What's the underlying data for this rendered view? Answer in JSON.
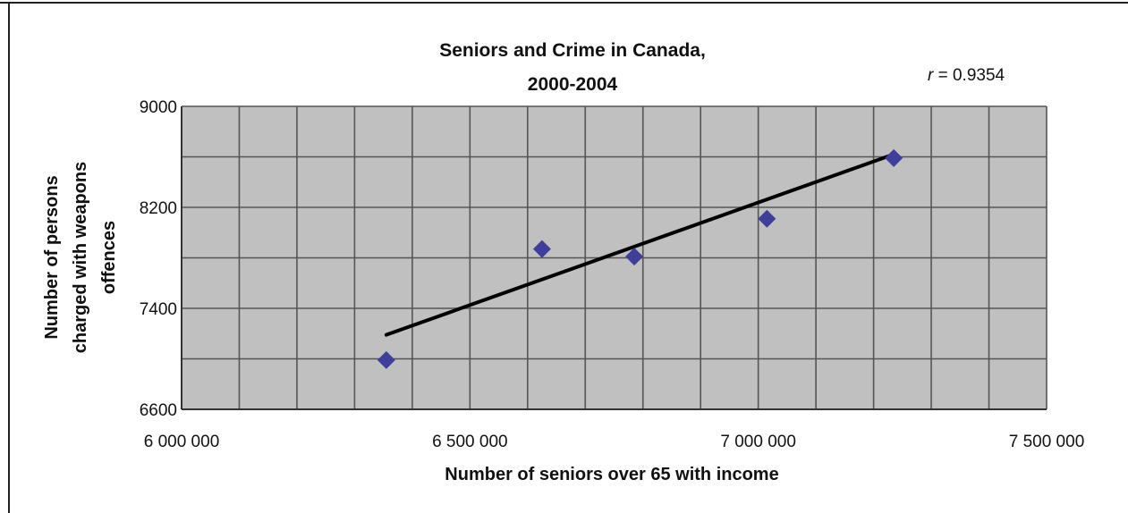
{
  "chart_data": {
    "type": "scatter",
    "title_lines": [
      "Seniors and Crime in Canada,",
      "2000-2004"
    ],
    "annotation": {
      "var": "r",
      "text": " = 0.9354"
    },
    "xlabel": "Number of seniors over 65 with income",
    "ylabel_lines": [
      "Number of persons",
      "charged with weapons",
      "offences"
    ],
    "xlim": [
      6000000,
      7500000
    ],
    "ylim": [
      6600,
      9000
    ],
    "x_ticks": [
      6000000,
      6500000,
      7000000,
      7500000
    ],
    "x_tick_labels": [
      "6 000 000",
      "6 500 000",
      "7 000 000",
      "7 500 000"
    ],
    "y_ticks": [
      6600,
      7400,
      8200,
      9000
    ],
    "y_tick_labels": [
      "6600",
      "7400",
      "8200",
      "9000"
    ],
    "x_minor_step": 100000,
    "y_minor_step": 400,
    "grid": true,
    "points": [
      {
        "x": 6355000,
        "y": 6990
      },
      {
        "x": 6625000,
        "y": 7870
      },
      {
        "x": 6785000,
        "y": 7810
      },
      {
        "x": 7015000,
        "y": 8110
      },
      {
        "x": 7235000,
        "y": 8590
      }
    ],
    "trendline": {
      "x": [
        6355000,
        7235000
      ],
      "y": [
        7190,
        8620
      ]
    },
    "colors": {
      "plot_background": "#c0c0c0",
      "grid": "#555555",
      "marker": "#3f3f9a",
      "trendline": "#000000"
    }
  }
}
